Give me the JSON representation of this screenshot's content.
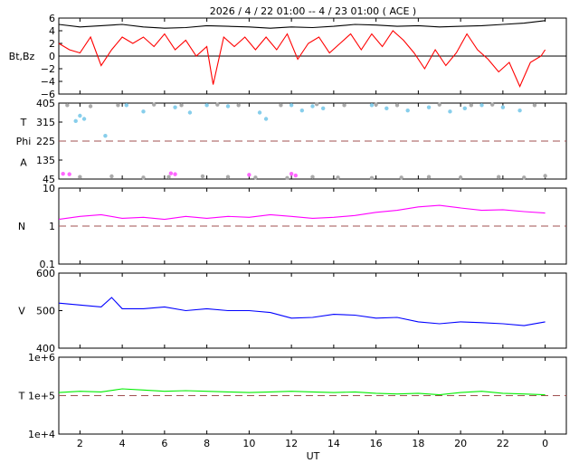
{
  "title": "2026  /  4 / 22   01:00 -- 4 / 23   01:00 ( ACE )",
  "xlabel": "UT",
  "x_ticks": [
    "2",
    "4",
    "6",
    "8",
    "10",
    "12",
    "14",
    "16",
    "18",
    "20",
    "22",
    "0"
  ],
  "colors": {
    "bt": "#000000",
    "bz": "#ff0000",
    "theta": "#87ceeb",
    "phi": "#aaaaaa",
    "density": "#ff00ff",
    "speed": "#0000ff",
    "temperature": "#00ee00",
    "reference": "#a05050"
  },
  "chart_data": [
    {
      "type": "line",
      "name": "mag",
      "ylabel": "Bt,Bz",
      "ylim": [
        -6,
        6
      ],
      "y_ticks": [
        "6",
        "4",
        "2",
        "0",
        "−2",
        "−4",
        "−6"
      ],
      "x_range_hours": [
        1,
        25
      ],
      "series": [
        {
          "name": "Bt",
          "color": "#000000",
          "points": [
            [
              1,
              5.0
            ],
            [
              2,
              4.6
            ],
            [
              3,
              4.8
            ],
            [
              4,
              5.0
            ],
            [
              5,
              4.6
            ],
            [
              6,
              4.4
            ],
            [
              7,
              4.5
            ],
            [
              8,
              4.8
            ],
            [
              9,
              4.7
            ],
            [
              10,
              4.6
            ],
            [
              11,
              4.4
            ],
            [
              12,
              4.6
            ],
            [
              13,
              4.5
            ],
            [
              14,
              4.7
            ],
            [
              15,
              5.0
            ],
            [
              16,
              4.9
            ],
            [
              17,
              4.7
            ],
            [
              18,
              4.8
            ],
            [
              19,
              4.6
            ],
            [
              20,
              4.7
            ],
            [
              21,
              4.8
            ],
            [
              22,
              5.0
            ],
            [
              23,
              5.2
            ],
            [
              24,
              5.6
            ]
          ]
        },
        {
          "name": "Bz",
          "color": "#ff0000",
          "points": [
            [
              1,
              2.0
            ],
            [
              1.5,
              1.0
            ],
            [
              2,
              0.5
            ],
            [
              2.5,
              3.0
            ],
            [
              3,
              -1.5
            ],
            [
              3.5,
              1.0
            ],
            [
              4,
              3.0
            ],
            [
              4.5,
              2.0
            ],
            [
              5,
              3.0
            ],
            [
              5.5,
              1.5
            ],
            [
              6,
              3.5
            ],
            [
              6.5,
              1.0
            ],
            [
              7,
              2.5
            ],
            [
              7.5,
              0.0
            ],
            [
              8,
              1.5
            ],
            [
              8.3,
              -4.5
            ],
            [
              8.8,
              3.0
            ],
            [
              9.3,
              1.5
            ],
            [
              9.8,
              3.0
            ],
            [
              10.3,
              1.0
            ],
            [
              10.8,
              3.0
            ],
            [
              11.3,
              1.0
            ],
            [
              11.8,
              3.5
            ],
            [
              12.3,
              -0.5
            ],
            [
              12.8,
              2.0
            ],
            [
              13.3,
              3.0
            ],
            [
              13.8,
              0.5
            ],
            [
              14.3,
              2.0
            ],
            [
              14.8,
              3.5
            ],
            [
              15.3,
              1.0
            ],
            [
              15.8,
              3.5
            ],
            [
              16.3,
              1.5
            ],
            [
              16.8,
              4.0
            ],
            [
              17.3,
              2.5
            ],
            [
              17.8,
              0.5
            ],
            [
              18.3,
              -2.0
            ],
            [
              18.8,
              1.0
            ],
            [
              19.3,
              -1.5
            ],
            [
              19.8,
              0.5
            ],
            [
              20.3,
              3.5
            ],
            [
              20.8,
              1.0
            ],
            [
              21.3,
              -0.5
            ],
            [
              21.8,
              -2.5
            ],
            [
              22.3,
              -1.0
            ],
            [
              22.8,
              -4.8
            ],
            [
              23.3,
              -1.0
            ],
            [
              23.8,
              0.0
            ],
            [
              24.0,
              1.0
            ]
          ]
        }
      ]
    },
    {
      "type": "scatter",
      "name": "angles",
      "ylabels": [
        "T",
        "Phi",
        "A"
      ],
      "ylim": [
        45,
        405
      ],
      "y_ticks": [
        "405",
        "315",
        "225",
        "135",
        "45"
      ],
      "reference_line": 225,
      "x_range_hours": [
        1,
        25
      ],
      "series": [
        {
          "name": "Theta",
          "color": "#87ceeb",
          "points": [
            [
              1.8,
              320
            ],
            [
              2,
              345
            ],
            [
              2.2,
              330
            ],
            [
              3.2,
              250
            ],
            [
              4.2,
              395
            ],
            [
              5.0,
              365
            ],
            [
              6.5,
              385
            ],
            [
              7.2,
              360
            ],
            [
              8.0,
              395
            ],
            [
              9.0,
              390
            ],
            [
              10.5,
              360
            ],
            [
              10.8,
              330
            ],
            [
              12.0,
              395
            ],
            [
              12.5,
              370
            ],
            [
              13.0,
              390
            ],
            [
              13.5,
              380
            ],
            [
              15.8,
              395
            ],
            [
              16.5,
              380
            ],
            [
              17.5,
              370
            ],
            [
              18.5,
              385
            ],
            [
              19.5,
              365
            ],
            [
              20.2,
              380
            ],
            [
              21.0,
              395
            ],
            [
              22.0,
              385
            ],
            [
              22.8,
              370
            ]
          ]
        },
        {
          "name": "Phi",
          "color": "#aaaaaa",
          "points": [
            [
              1.4,
              395
            ],
            [
              2.5,
              390
            ],
            [
              3.8,
              395
            ],
            [
              5.5,
              398
            ],
            [
              6.8,
              395
            ],
            [
              8.5,
              398
            ],
            [
              9.5,
              395
            ],
            [
              11.5,
              395
            ],
            [
              13.2,
              400
            ],
            [
              14.5,
              395
            ],
            [
              16.0,
              398
            ],
            [
              17.0,
              395
            ],
            [
              19.0,
              398
            ],
            [
              20.5,
              395
            ],
            [
              21.5,
              398
            ],
            [
              23.5,
              395
            ],
            [
              2.0,
              55
            ],
            [
              3.5,
              58
            ],
            [
              5.0,
              52
            ],
            [
              6.2,
              55
            ],
            [
              7.8,
              58
            ],
            [
              9.0,
              55
            ],
            [
              10.3,
              52
            ],
            [
              11.8,
              50
            ],
            [
              13.0,
              55
            ],
            [
              14.2,
              52
            ],
            [
              15.8,
              50
            ],
            [
              17.2,
              52
            ],
            [
              18.5,
              55
            ],
            [
              20.0,
              52
            ],
            [
              21.8,
              55
            ],
            [
              23.0,
              52
            ],
            [
              24.0,
              60
            ]
          ]
        },
        {
          "name": "A",
          "color": "#ff66ff",
          "points": [
            [
              1.2,
              70
            ],
            [
              1.5,
              68
            ],
            [
              6.3,
              72
            ],
            [
              6.5,
              68
            ],
            [
              10.0,
              65
            ],
            [
              12.0,
              70
            ],
            [
              12.2,
              62
            ]
          ]
        }
      ]
    },
    {
      "type": "line",
      "name": "density",
      "ylabel": "N",
      "yscale": "log",
      "ylim": [
        0.1,
        10
      ],
      "y_ticks": [
        "10",
        "1",
        "0.1"
      ],
      "reference_line": 1,
      "x_range_hours": [
        1,
        25
      ],
      "series": [
        {
          "name": "N",
          "color": "#ff00ff",
          "points": [
            [
              1,
              1.5
            ],
            [
              2,
              1.8
            ],
            [
              3,
              2.0
            ],
            [
              4,
              1.6
            ],
            [
              5,
              1.7
            ],
            [
              6,
              1.5
            ],
            [
              7,
              1.8
            ],
            [
              8,
              1.6
            ],
            [
              9,
              1.8
            ],
            [
              10,
              1.7
            ],
            [
              11,
              2.0
            ],
            [
              12,
              1.8
            ],
            [
              13,
              1.6
            ],
            [
              14,
              1.7
            ],
            [
              15,
              1.9
            ],
            [
              16,
              2.3
            ],
            [
              17,
              2.6
            ],
            [
              18,
              3.2
            ],
            [
              19,
              3.5
            ],
            [
              20,
              3.0
            ],
            [
              21,
              2.6
            ],
            [
              22,
              2.7
            ],
            [
              23,
              2.4
            ],
            [
              24,
              2.2
            ]
          ]
        }
      ]
    },
    {
      "type": "line",
      "name": "speed",
      "ylabel": "V",
      "ylim": [
        400,
        600
      ],
      "y_ticks": [
        "600",
        "500",
        "400"
      ],
      "x_range_hours": [
        1,
        25
      ],
      "series": [
        {
          "name": "V",
          "color": "#0000ff",
          "points": [
            [
              1,
              520
            ],
            [
              2,
              515
            ],
            [
              3,
              510
            ],
            [
              3.5,
              535
            ],
            [
              4,
              505
            ],
            [
              5,
              505
            ],
            [
              6,
              510
            ],
            [
              7,
              500
            ],
            [
              8,
              505
            ],
            [
              9,
              500
            ],
            [
              10,
              500
            ],
            [
              11,
              495
            ],
            [
              12,
              480
            ],
            [
              13,
              482
            ],
            [
              14,
              490
            ],
            [
              15,
              488
            ],
            [
              16,
              480
            ],
            [
              17,
              482
            ],
            [
              18,
              470
            ],
            [
              19,
              465
            ],
            [
              20,
              470
            ],
            [
              21,
              468
            ],
            [
              22,
              465
            ],
            [
              23,
              460
            ],
            [
              24,
              470
            ]
          ]
        }
      ]
    },
    {
      "type": "line",
      "name": "temperature",
      "ylabel": "T",
      "yscale": "log",
      "ylim": [
        10000,
        1000000
      ],
      "y_ticks": [
        "1e+6",
        "1e+5",
        "1e+4"
      ],
      "reference_line": 100000,
      "x_range_hours": [
        1,
        25
      ],
      "series": [
        {
          "name": "T",
          "color": "#00ee00",
          "points": [
            [
              1,
              120000
            ],
            [
              2,
              130000
            ],
            [
              3,
              125000
            ],
            [
              4,
              150000
            ],
            [
              5,
              140000
            ],
            [
              6,
              130000
            ],
            [
              7,
              135000
            ],
            [
              8,
              130000
            ],
            [
              9,
              125000
            ],
            [
              10,
              120000
            ],
            [
              11,
              125000
            ],
            [
              12,
              130000
            ],
            [
              13,
              125000
            ],
            [
              14,
              120000
            ],
            [
              15,
              125000
            ],
            [
              16,
              115000
            ],
            [
              17,
              110000
            ],
            [
              18,
              115000
            ],
            [
              19,
              105000
            ],
            [
              20,
              120000
            ],
            [
              21,
              130000
            ],
            [
              22,
              115000
            ],
            [
              23,
              110000
            ],
            [
              24,
              105000
            ]
          ]
        }
      ]
    }
  ]
}
